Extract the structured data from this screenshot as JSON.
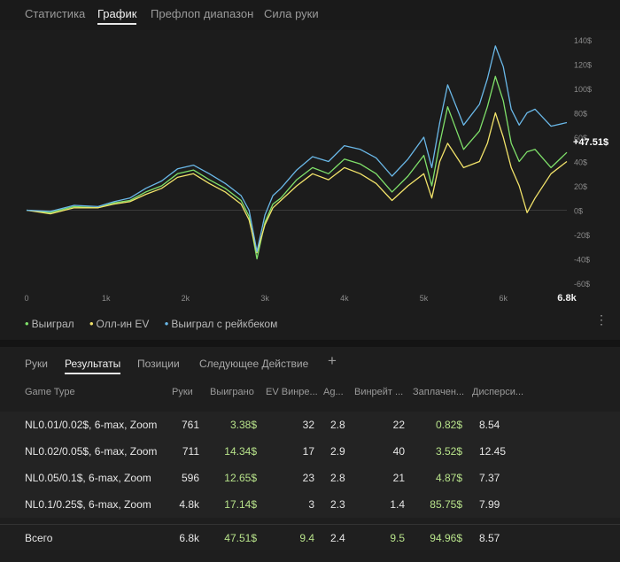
{
  "top_tabs": [
    "Статистика",
    "График",
    "Префлоп диапазон",
    "Сила руки"
  ],
  "active_top_tab": "График",
  "chart_data": {
    "type": "line",
    "x_ticks": [
      "0",
      "1k",
      "2k",
      "3k",
      "4k",
      "5k",
      "6k",
      "6.8k"
    ],
    "y_ticks": [
      "140$",
      "120$",
      "100$",
      "80$",
      "60$",
      "40$",
      "20$",
      "0$",
      "-20$",
      "-40$",
      "-60$"
    ],
    "ylim": [
      -60,
      140
    ],
    "xlim": [
      0,
      6800
    ],
    "end_label": "+47.51$",
    "series": [
      {
        "name": "Выиграл",
        "color": "#7fe06a",
        "x": [
          0,
          300,
          600,
          900,
          1100,
          1300,
          1500,
          1700,
          1900,
          2100,
          2300,
          2500,
          2700,
          2800,
          2900,
          3000,
          3100,
          3200,
          3400,
          3600,
          3800,
          4000,
          4200,
          4400,
          4600,
          4800,
          5000,
          5100,
          5200,
          5300,
          5500,
          5700,
          5800,
          5900,
          6000,
          6100,
          6200,
          6300,
          6400,
          6600,
          6800
        ],
        "y": [
          0,
          -2,
          3,
          2,
          6,
          8,
          15,
          20,
          30,
          33,
          25,
          18,
          8,
          -5,
          -40,
          -10,
          5,
          10,
          25,
          35,
          30,
          42,
          38,
          30,
          15,
          28,
          45,
          20,
          55,
          85,
          50,
          65,
          85,
          110,
          90,
          55,
          40,
          48,
          50,
          35,
          47.51
        ]
      },
      {
        "name": "Олл-ин EV",
        "color": "#f2e36a",
        "x": [
          0,
          300,
          600,
          900,
          1100,
          1300,
          1500,
          1700,
          1900,
          2100,
          2300,
          2500,
          2700,
          2800,
          2900,
          3000,
          3100,
          3200,
          3400,
          3600,
          3800,
          4000,
          4200,
          4400,
          4600,
          4800,
          5000,
          5100,
          5200,
          5300,
          5500,
          5700,
          5800,
          5900,
          6000,
          6100,
          6200,
          6300,
          6400,
          6600,
          6800
        ],
        "y": [
          0,
          -3,
          2,
          2,
          5,
          7,
          13,
          18,
          27,
          30,
          22,
          15,
          5,
          -8,
          -35,
          -12,
          2,
          8,
          20,
          30,
          25,
          35,
          30,
          22,
          8,
          20,
          30,
          10,
          40,
          55,
          35,
          40,
          55,
          80,
          60,
          35,
          20,
          -2,
          10,
          30,
          40
        ]
      },
      {
        "name": "Выиграл с рейкбеком",
        "color": "#6ab8e8",
        "x": [
          0,
          300,
          600,
          900,
          1100,
          1300,
          1500,
          1700,
          1900,
          2100,
          2300,
          2500,
          2700,
          2800,
          2900,
          3000,
          3100,
          3200,
          3400,
          3600,
          3800,
          4000,
          4200,
          4400,
          4600,
          4800,
          5000,
          5100,
          5200,
          5300,
          5500,
          5700,
          5800,
          5900,
          6000,
          6100,
          6200,
          6300,
          6400,
          6600,
          6800
        ],
        "y": [
          0,
          -1,
          4,
          3,
          7,
          10,
          18,
          24,
          34,
          37,
          30,
          22,
          12,
          0,
          -34,
          -4,
          12,
          18,
          33,
          44,
          40,
          53,
          50,
          43,
          28,
          42,
          60,
          35,
          72,
          103,
          70,
          87,
          108,
          135,
          118,
          83,
          70,
          80,
          83,
          69,
          72
        ]
      }
    ]
  },
  "legend": {
    "items": [
      "Выиграл",
      "Олл-ин EV",
      "Выиграл с рейкбеком"
    ],
    "more_icon": "more-vertical-icon"
  },
  "sub_tabs": [
    "Руки",
    "Результаты",
    "Позиции",
    "Следующее Действие"
  ],
  "active_sub_tab": "Результаты",
  "add_tab_label": "+",
  "table": {
    "headers": [
      "Game Type",
      "Руки",
      "Выиграно",
      "EV Винре...",
      "Ag...",
      "Винрейт ...",
      "Заплачен...",
      "Дисперси..."
    ],
    "rows": [
      [
        "NL0.01/0.02$, 6-max, Zoom",
        "761",
        "3.38$",
        "32",
        "2.8",
        "22",
        "0.82$",
        "8.54"
      ],
      [
        "NL0.02/0.05$, 6-max, Zoom",
        "711",
        "14.34$",
        "17",
        "2.9",
        "40",
        "3.52$",
        "12.45"
      ],
      [
        "NL0.05/0.1$, 6-max, Zoom",
        "596",
        "12.65$",
        "23",
        "2.8",
        "21",
        "4.87$",
        "7.37"
      ],
      [
        "NL0.1/0.25$, 6-max, Zoom",
        "4.8k",
        "17.14$",
        "3",
        "2.3",
        "1.4",
        "85.75$",
        "7.99"
      ]
    ],
    "total": [
      "Всего",
      "6.8k",
      "47.51$",
      "9.4",
      "2.4",
      "9.5",
      "94.96$",
      "8.57"
    ]
  },
  "colors": {
    "green": "#b7e28a",
    "background": "#1c1c1c"
  }
}
